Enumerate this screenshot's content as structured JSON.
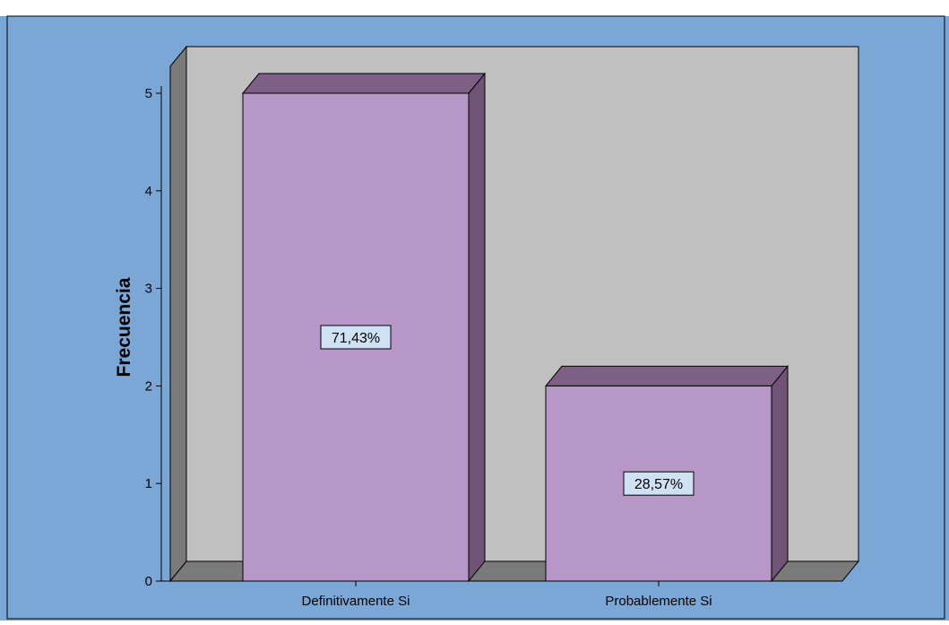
{
  "chart_data": {
    "type": "bar",
    "categories": [
      "Definitivamente Si",
      "Probablemente Si"
    ],
    "values": [
      5,
      2
    ],
    "data_labels": [
      "71,43%",
      "28,57%"
    ],
    "title": "",
    "xlabel": "",
    "ylabel": "Frecuencia",
    "ylim": [
      0,
      5
    ],
    "yticks": [
      0,
      1,
      2,
      3,
      4,
      5
    ],
    "grid": false,
    "three_d": true,
    "colors": {
      "background": "#7BA7D6",
      "plot_back": "#C0C0C0",
      "side_wall": "#7A7A7A",
      "floor": "#7A7A7A",
      "bar_front": "#B797C8",
      "bar_top": "#7E5F86",
      "bar_side": "#6F5476",
      "label_box": "#CFE2F5",
      "outline": "#000000"
    }
  }
}
